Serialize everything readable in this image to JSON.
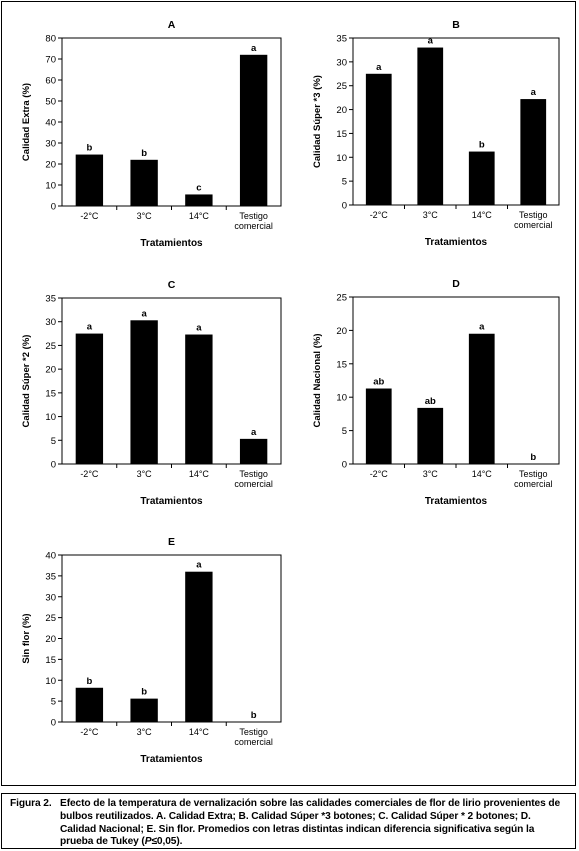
{
  "chart_data": [
    {
      "type": "bar",
      "panel_label": "A",
      "categories": [
        "-2°C",
        "3°C",
        "14°C",
        "Testigo\ncomercial"
      ],
      "values": [
        24.5,
        22,
        5.5,
        72
      ],
      "letters": [
        "b",
        "b",
        "c",
        "a"
      ],
      "xlabel": "Tratamientos",
      "ylabel": "Calidad Extra (%)",
      "ylim": [
        0,
        80
      ],
      "yticks": [
        0,
        10,
        20,
        30,
        40,
        50,
        60,
        70,
        80
      ]
    },
    {
      "type": "bar",
      "panel_label": "B",
      "categories": [
        "-2°C",
        "3°C",
        "14°C",
        "Testigo\ncomercial"
      ],
      "values": [
        27.5,
        33,
        11.2,
        22.2
      ],
      "letters": [
        "a",
        "a",
        "b",
        "a"
      ],
      "xlabel": "Tratamientos",
      "ylabel": "Calidad Súper *3 (%)",
      "ylim": [
        0,
        35
      ],
      "yticks": [
        0,
        5,
        10,
        15,
        20,
        25,
        30,
        35
      ]
    },
    {
      "type": "bar",
      "panel_label": "C",
      "categories": [
        "-2°C",
        "3°C",
        "14°C",
        "Testigo\ncomercial"
      ],
      "values": [
        27.5,
        30.3,
        27.3,
        5.3
      ],
      "letters": [
        "a",
        "a",
        "a",
        "a"
      ],
      "xlabel": "Tratamientos",
      "ylabel": "Calidad Súper *2 (%)",
      "ylim": [
        0,
        35
      ],
      "yticks": [
        0,
        5,
        10,
        15,
        20,
        25,
        30,
        35
      ]
    },
    {
      "type": "bar",
      "panel_label": "D",
      "categories": [
        "-2°C",
        "3°C",
        "14°C",
        "Testigo\ncomercial"
      ],
      "values": [
        11.3,
        8.4,
        19.5,
        0
      ],
      "letters": [
        "ab",
        "ab",
        "a",
        "b"
      ],
      "xlabel": "Tratamientos",
      "ylabel": "Calidad Nacional (%)",
      "ylim": [
        0,
        25
      ],
      "yticks": [
        0,
        5,
        10,
        15,
        20,
        25
      ]
    },
    {
      "type": "bar",
      "panel_label": "E",
      "categories": [
        "-2°C",
        "3°C",
        "14°C",
        "Testigo\ncomercial"
      ],
      "values": [
        8.2,
        5.6,
        36,
        0
      ],
      "letters": [
        "b",
        "b",
        "a",
        "b"
      ],
      "xlabel": "Tratamientos",
      "ylabel": "Sin flor (%)",
      "ylim": [
        0,
        40
      ],
      "yticks": [
        0,
        5,
        10,
        15,
        20,
        25,
        30,
        35,
        40
      ]
    }
  ],
  "caption": {
    "number": "Figura 2.",
    "text_main": "Efecto de la temperatura de vernalización sobre las calidades comerciales de flor de lirio provenientes de bulbos reutilizados. A. Calidad Extra; B. Calidad Súper *3 botones; C. Calidad Súper * 2 botones; D. Calidad Nacional; E. Sin flor. Promedios con letras distintas indican diferencia significativa según la prueba de Tukey (",
    "text_p": "P",
    "text_rest": "≤0,05)."
  }
}
